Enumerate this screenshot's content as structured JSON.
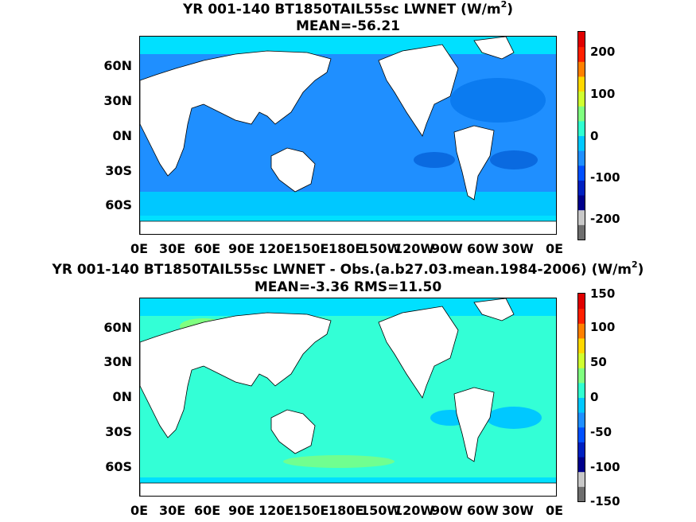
{
  "panels": [
    {
      "title_line1": "YR 001-140 BT1850TAIL55sc  LWNET (W/m",
      "title_sup": "2",
      "title_close": ")",
      "title_line2": "MEAN=-56.21",
      "colorbar_ticks": [
        "200",
        "100",
        "0",
        "-100",
        "-200"
      ],
      "ocean_base_color": "#1f8fff",
      "polar_color": "#00e0ff"
    },
    {
      "title_line1": "YR 001-140 BT1850TAIL55sc LWNET - Obs.(a.b27.03.mean.1984-2006) (W/m",
      "title_sup": "2",
      "title_close": ")",
      "title_line2": "MEAN=-3.36 RMS=11.50",
      "colorbar_ticks": [
        "150",
        "100",
        "50",
        "0",
        "-50",
        "-100",
        "-150"
      ],
      "ocean_base_color": "#33ffd6",
      "polar_color": "#00e0ff"
    }
  ],
  "lat_labels": [
    "60N",
    "30N",
    "0N",
    "30S",
    "60S"
  ],
  "lon_labels": [
    "0E",
    "30E",
    "60E",
    "90E",
    "120E",
    "150E",
    "180E",
    "150W",
    "120W",
    "90W",
    "60W",
    "30W",
    "0E"
  ],
  "colors": {
    "colormap": [
      "#6e6e6e",
      "#c8c8c8",
      "#00008b",
      "#0020c0",
      "#0050ff",
      "#1f8fff",
      "#00c8ff",
      "#30ffd0",
      "#80ff80",
      "#d0ff30",
      "#ffd800",
      "#ff8000",
      "#ff2000",
      "#e00000"
    ],
    "land": "#ffffff"
  }
}
